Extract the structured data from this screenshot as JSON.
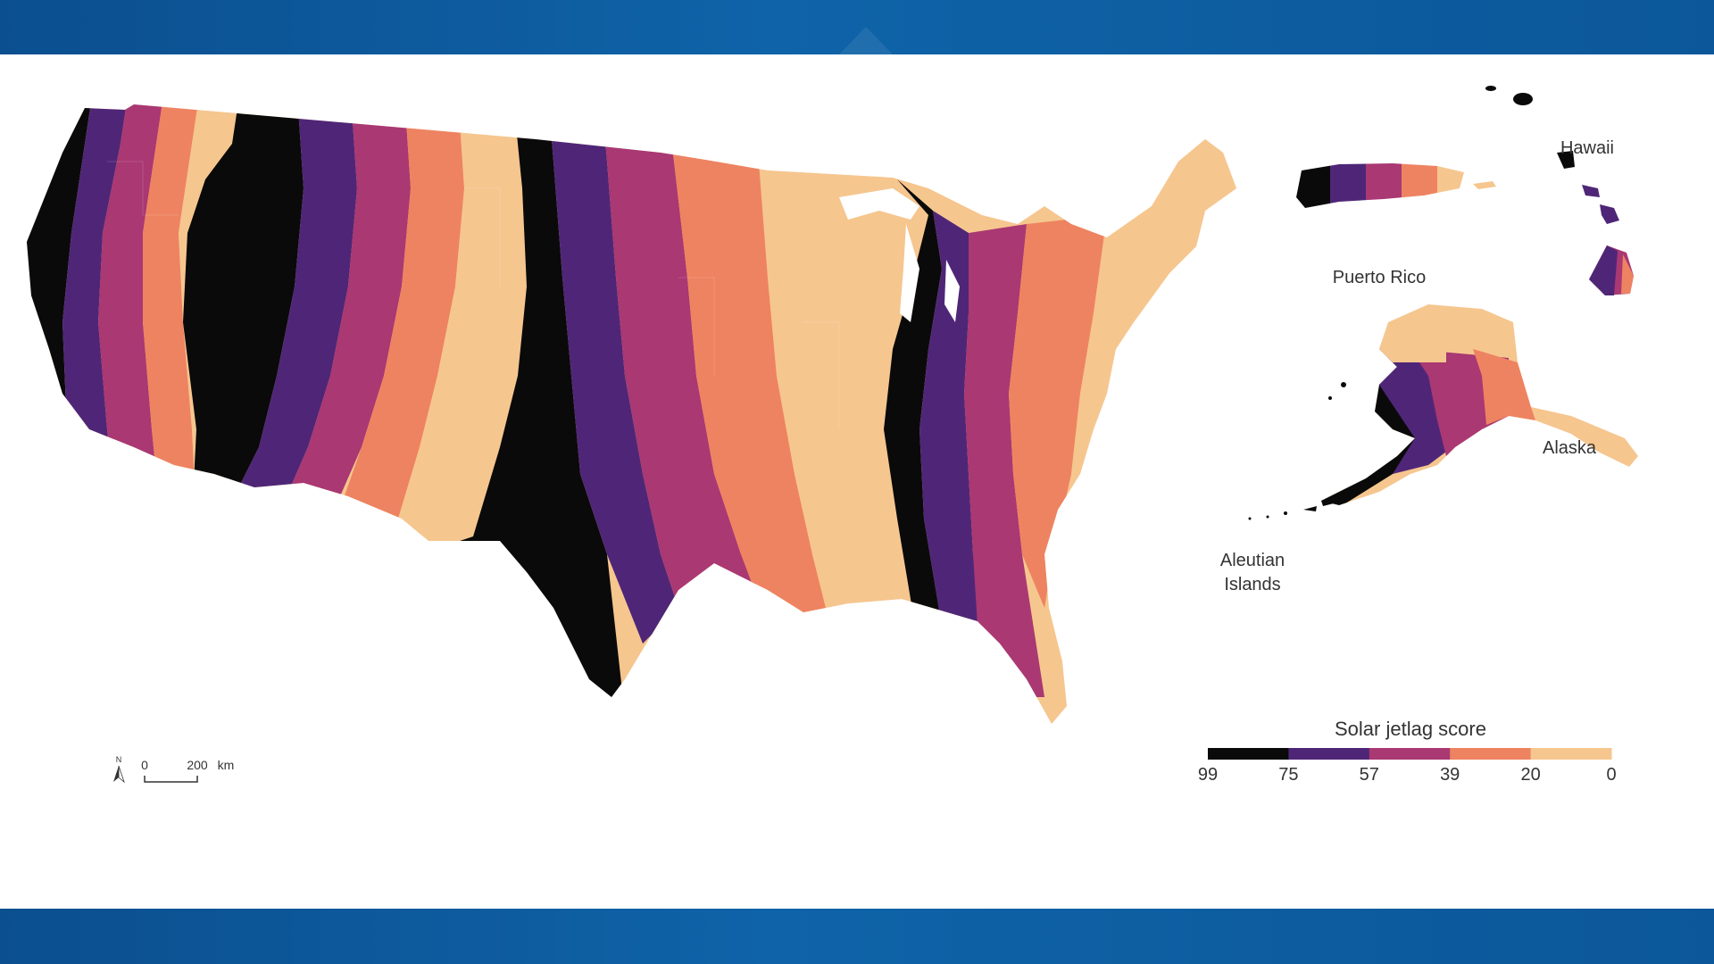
{
  "map": {
    "legend": {
      "title": "Solar jetlag score",
      "ticks": [
        "99",
        "75",
        "57",
        "39",
        "20",
        "0"
      ],
      "colors": [
        "#0a0a0a",
        "#4f2677",
        "#a93873",
        "#ee8361",
        "#f6c68f"
      ]
    },
    "places": {
      "hawaii": "Hawaii",
      "puerto_rico": "Puerto Rico",
      "alaska": "Alaska",
      "aleutian_line1": "Aleutian",
      "aleutian_line2": "Islands"
    },
    "scale_bar": {
      "north": "N",
      "zero": "0",
      "distance": "200",
      "unit": "km"
    }
  }
}
